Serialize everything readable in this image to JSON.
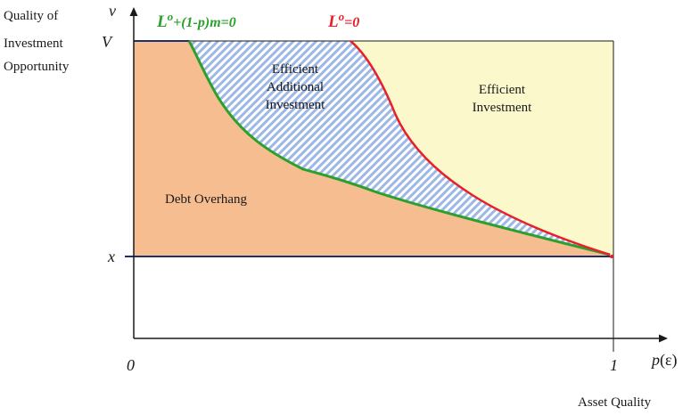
{
  "y_axis": {
    "title_lines": [
      "Quality of",
      "Investment",
      "Opportunity"
    ],
    "var": "v",
    "tick_V": "V",
    "tick_x": "x"
  },
  "x_axis": {
    "var_main": "p",
    "var_arg": "(ε)",
    "title": "Asset Quality",
    "tick_0": "0",
    "tick_1": "1"
  },
  "curves": {
    "green_label_main": "L",
    "green_label_sup": "o",
    "green_label_rest": "+(1-p)m=0",
    "red_label_main": "L",
    "red_label_sup": "o",
    "red_label_rest": "=0"
  },
  "regions": {
    "debt_overhang": "Debt Overhang",
    "efficient_additional": [
      "Efficient",
      "Additional",
      "Investment"
    ],
    "efficient_investment": [
      "Efficient",
      "Investment"
    ]
  },
  "colors": {
    "debt_overhang_fill": "#f6bd90",
    "efficient_investment_fill": "#fbf8cc",
    "hatch_stripe": "#9db8e6",
    "green_curve": "#2ca02c",
    "red_curve": "#e8202a",
    "navy_line": "#1f2f6b"
  }
}
